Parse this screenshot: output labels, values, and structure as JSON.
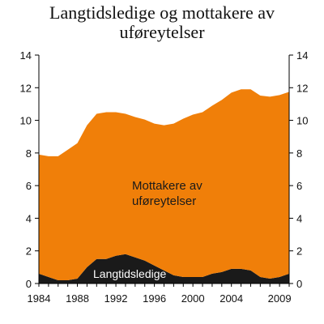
{
  "chart_data": {
    "type": "area",
    "title_lines": [
      "Langtidsledige og mottakere av",
      "uføreytelser"
    ],
    "xlabel": "",
    "ylabel": "",
    "xlim": [
      1984,
      2010
    ],
    "ylim": [
      0,
      14
    ],
    "y_ticks": [
      0,
      2,
      4,
      6,
      8,
      10,
      12,
      14
    ],
    "x_ticks": [
      1984,
      1988,
      1992,
      1996,
      2000,
      2004,
      2009
    ],
    "stacked": true,
    "grid": false,
    "secondary_y_axis": true,
    "x": [
      1984,
      1985,
      1986,
      1987,
      1988,
      1989,
      1990,
      1991,
      1992,
      1993,
      1994,
      1995,
      1996,
      1997,
      1998,
      1999,
      2000,
      2001,
      2002,
      2003,
      2004,
      2005,
      2006,
      2007,
      2008,
      2009,
      2010
    ],
    "series": [
      {
        "name": "Langtidsledige",
        "color": "#1a1a1a",
        "values": [
          0.6,
          0.4,
          0.2,
          0.2,
          0.3,
          1.0,
          1.5,
          1.5,
          1.7,
          1.8,
          1.6,
          1.4,
          1.1,
          0.8,
          0.5,
          0.4,
          0.4,
          0.4,
          0.6,
          0.7,
          0.9,
          0.9,
          0.8,
          0.4,
          0.3,
          0.4,
          0.6
        ]
      },
      {
        "name": "Mottakere av uføreytelser",
        "label_lines": [
          "Mottakere av",
          "uføreytelser"
        ],
        "color": "#f07f09",
        "values": [
          7.3,
          7.4,
          7.6,
          8.0,
          8.3,
          8.7,
          8.9,
          9.0,
          8.8,
          8.6,
          8.6,
          8.65,
          8.7,
          8.9,
          9.3,
          9.7,
          9.95,
          10.1,
          10.3,
          10.55,
          10.8,
          11.0,
          11.1,
          11.12,
          11.15,
          11.15,
          11.15
        ]
      }
    ]
  }
}
